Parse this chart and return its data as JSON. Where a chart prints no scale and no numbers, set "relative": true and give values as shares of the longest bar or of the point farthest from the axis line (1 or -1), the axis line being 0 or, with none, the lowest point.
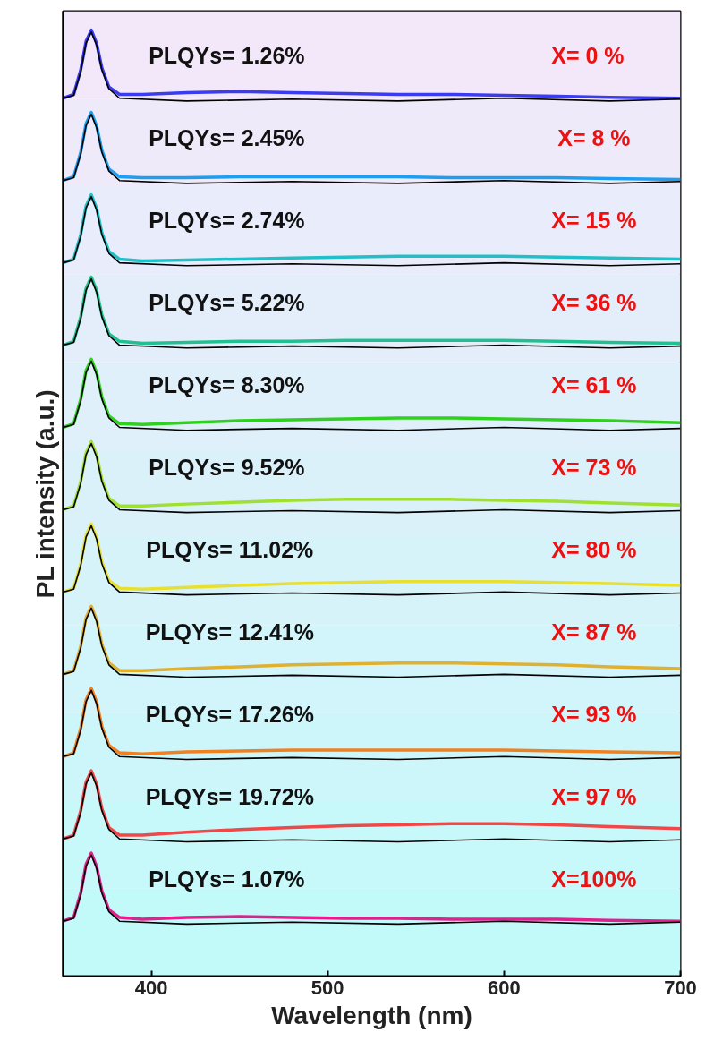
{
  "chart_data": {
    "type": "line",
    "relative": true,
    "xlabel": "Wavelength (nm)",
    "ylabel": "PL intensity (a.u.)",
    "x": [
      350,
      356,
      360,
      363,
      366,
      369,
      372,
      376,
      382,
      395,
      420,
      450,
      480,
      510,
      540,
      570,
      600,
      630,
      660,
      700
    ],
    "xlim": [
      350,
      700
    ],
    "xticks": [
      400,
      500,
      600,
      700
    ],
    "grid": false,
    "line_style": "solid",
    "marker": "none",
    "series": [
      {
        "color": "#3b3bf0",
        "values": [
          0.928,
          0.932,
          0.958,
          0.988,
          1.0,
          0.986,
          0.96,
          0.94,
          0.932,
          0.932,
          0.934,
          0.935,
          0.934,
          0.933,
          0.932,
          0.932,
          0.931,
          0.93,
          0.929,
          0.928
        ]
      },
      {
        "color": "#000000",
        "x": [
          350,
          356,
          360,
          363,
          366,
          369,
          372,
          376,
          382,
          420,
          480,
          540,
          600,
          660,
          700
        ],
        "values": [
          0.928,
          0.931,
          0.956,
          0.986,
          0.998,
          0.984,
          0.958,
          0.938,
          0.928,
          0.925,
          0.927,
          0.925,
          0.928,
          0.925,
          0.927
        ]
      },
      {
        "color": "#1e9ef0",
        "values": [
          0.841,
          0.845,
          0.871,
          0.901,
          0.913,
          0.899,
          0.873,
          0.853,
          0.845,
          0.844,
          0.844,
          0.845,
          0.845,
          0.845,
          0.845,
          0.844,
          0.844,
          0.844,
          0.843,
          0.842
        ]
      },
      {
        "color": "#000000",
        "x": [
          350,
          356,
          360,
          363,
          366,
          369,
          372,
          376,
          382,
          420,
          480,
          540,
          600,
          660,
          700
        ],
        "values": [
          0.841,
          0.844,
          0.869,
          0.899,
          0.911,
          0.897,
          0.871,
          0.851,
          0.841,
          0.838,
          0.84,
          0.838,
          0.841,
          0.838,
          0.84
        ]
      },
      {
        "color": "#20c0c8",
        "values": [
          0.754,
          0.758,
          0.784,
          0.814,
          0.826,
          0.812,
          0.786,
          0.766,
          0.758,
          0.756,
          0.757,
          0.758,
          0.759,
          0.76,
          0.761,
          0.761,
          0.761,
          0.76,
          0.759,
          0.758
        ]
      },
      {
        "color": "#000000",
        "x": [
          350,
          356,
          360,
          363,
          366,
          369,
          372,
          376,
          382,
          420,
          480,
          540,
          600,
          660,
          700
        ],
        "values": [
          0.754,
          0.757,
          0.782,
          0.812,
          0.824,
          0.81,
          0.784,
          0.764,
          0.754,
          0.751,
          0.753,
          0.751,
          0.754,
          0.751,
          0.753
        ]
      },
      {
        "color": "#20c090",
        "values": [
          0.667,
          0.671,
          0.697,
          0.727,
          0.739,
          0.725,
          0.699,
          0.679,
          0.671,
          0.669,
          0.67,
          0.671,
          0.671,
          0.672,
          0.672,
          0.672,
          0.672,
          0.671,
          0.67,
          0.669
        ]
      },
      {
        "color": "#000000",
        "x": [
          350,
          356,
          360,
          363,
          366,
          369,
          372,
          376,
          382,
          420,
          480,
          540,
          600,
          660,
          700
        ],
        "values": [
          0.667,
          0.67,
          0.695,
          0.725,
          0.737,
          0.723,
          0.697,
          0.677,
          0.667,
          0.664,
          0.666,
          0.664,
          0.667,
          0.664,
          0.666
        ]
      },
      {
        "color": "#30d020",
        "values": [
          0.58,
          0.584,
          0.61,
          0.64,
          0.652,
          0.638,
          0.612,
          0.592,
          0.584,
          0.583,
          0.585,
          0.587,
          0.588,
          0.589,
          0.59,
          0.59,
          0.589,
          0.588,
          0.587,
          0.585
        ]
      },
      {
        "color": "#000000",
        "x": [
          350,
          356,
          360,
          363,
          366,
          369,
          372,
          376,
          382,
          420,
          480,
          540,
          600,
          660,
          700
        ],
        "values": [
          0.58,
          0.583,
          0.608,
          0.638,
          0.65,
          0.636,
          0.61,
          0.59,
          0.58,
          0.577,
          0.579,
          0.577,
          0.58,
          0.577,
          0.579
        ]
      },
      {
        "color": "#a0e030",
        "values": [
          0.493,
          0.497,
          0.523,
          0.553,
          0.565,
          0.551,
          0.525,
          0.505,
          0.497,
          0.497,
          0.499,
          0.501,
          0.503,
          0.504,
          0.504,
          0.504,
          0.503,
          0.502,
          0.5,
          0.498
        ]
      },
      {
        "color": "#000000",
        "x": [
          350,
          356,
          360,
          363,
          366,
          369,
          372,
          376,
          382,
          420,
          480,
          540,
          600,
          660,
          700
        ],
        "values": [
          0.493,
          0.496,
          0.521,
          0.551,
          0.563,
          0.549,
          0.523,
          0.503,
          0.493,
          0.49,
          0.492,
          0.49,
          0.493,
          0.49,
          0.492
        ]
      },
      {
        "color": "#e8e030",
        "values": [
          0.406,
          0.41,
          0.436,
          0.466,
          0.478,
          0.464,
          0.438,
          0.418,
          0.41,
          0.409,
          0.411,
          0.413,
          0.415,
          0.416,
          0.417,
          0.417,
          0.417,
          0.416,
          0.415,
          0.413
        ]
      },
      {
        "color": "#000000",
        "x": [
          350,
          356,
          360,
          363,
          366,
          369,
          372,
          376,
          382,
          420,
          480,
          540,
          600,
          660,
          700
        ],
        "values": [
          0.406,
          0.409,
          0.434,
          0.464,
          0.476,
          0.462,
          0.436,
          0.416,
          0.406,
          0.403,
          0.405,
          0.403,
          0.406,
          0.403,
          0.405
        ]
      },
      {
        "color": "#e0b030",
        "values": [
          0.319,
          0.323,
          0.349,
          0.379,
          0.391,
          0.377,
          0.351,
          0.331,
          0.323,
          0.323,
          0.325,
          0.327,
          0.329,
          0.33,
          0.331,
          0.331,
          0.33,
          0.329,
          0.327,
          0.325
        ]
      },
      {
        "color": "#000000",
        "x": [
          350,
          356,
          360,
          363,
          366,
          369,
          372,
          376,
          382,
          420,
          480,
          540,
          600,
          660,
          700
        ],
        "values": [
          0.319,
          0.322,
          0.347,
          0.377,
          0.389,
          0.375,
          0.349,
          0.329,
          0.319,
          0.316,
          0.318,
          0.316,
          0.319,
          0.316,
          0.318
        ]
      },
      {
        "color": "#f08020",
        "values": [
          0.232,
          0.236,
          0.262,
          0.292,
          0.304,
          0.29,
          0.264,
          0.244,
          0.236,
          0.235,
          0.237,
          0.238,
          0.239,
          0.239,
          0.239,
          0.239,
          0.239,
          0.238,
          0.237,
          0.236
        ]
      },
      {
        "color": "#000000",
        "x": [
          350,
          356,
          360,
          363,
          366,
          369,
          372,
          376,
          382,
          420,
          480,
          540,
          600,
          660,
          700
        ],
        "values": [
          0.232,
          0.235,
          0.26,
          0.29,
          0.302,
          0.288,
          0.262,
          0.242,
          0.232,
          0.229,
          0.231,
          0.229,
          0.232,
          0.229,
          0.231
        ]
      },
      {
        "color": "#f04848",
        "values": [
          0.145,
          0.149,
          0.175,
          0.205,
          0.217,
          0.203,
          0.177,
          0.157,
          0.149,
          0.149,
          0.152,
          0.155,
          0.157,
          0.159,
          0.16,
          0.161,
          0.161,
          0.16,
          0.158,
          0.156
        ]
      },
      {
        "color": "#000000",
        "x": [
          350,
          356,
          360,
          363,
          366,
          369,
          372,
          376,
          382,
          420,
          480,
          540,
          600,
          660,
          700
        ],
        "values": [
          0.145,
          0.148,
          0.173,
          0.203,
          0.215,
          0.201,
          0.175,
          0.155,
          0.145,
          0.142,
          0.144,
          0.142,
          0.145,
          0.142,
          0.144
        ]
      },
      {
        "color": "#e0208c",
        "values": [
          0.058,
          0.062,
          0.088,
          0.118,
          0.13,
          0.116,
          0.09,
          0.07,
          0.062,
          0.06,
          0.062,
          0.063,
          0.062,
          0.061,
          0.061,
          0.06,
          0.06,
          0.06,
          0.059,
          0.058
        ]
      },
      {
        "color": "#000000",
        "x": [
          350,
          356,
          360,
          363,
          366,
          369,
          372,
          376,
          382,
          420,
          480,
          540,
          600,
          660,
          700
        ],
        "values": [
          0.058,
          0.061,
          0.086,
          0.116,
          0.128,
          0.114,
          0.088,
          0.068,
          0.058,
          0.055,
          0.057,
          0.055,
          0.058,
          0.055,
          0.057
        ]
      }
    ],
    "bands": [
      {
        "axis": "y",
        "from": 0,
        "to": 0.093,
        "color": "#c2fafa"
      },
      {
        "axis": "y",
        "from": 0.093,
        "to": 0.185,
        "color": "#c7f8fa"
      },
      {
        "axis": "y",
        "from": 0.185,
        "to": 0.278,
        "color": "#ccf6fa"
      },
      {
        "axis": "y",
        "from": 0.278,
        "to": 0.371,
        "color": "#d1f5fa"
      },
      {
        "axis": "y",
        "from": 0.371,
        "to": 0.464,
        "color": "#d6f3fa"
      },
      {
        "axis": "y",
        "from": 0.464,
        "to": 0.556,
        "color": "#dbf1fa"
      },
      {
        "axis": "y",
        "from": 0.556,
        "to": 0.649,
        "color": "#dff0fa"
      },
      {
        "axis": "y",
        "from": 0.649,
        "to": 0.742,
        "color": "#e4eefa"
      },
      {
        "axis": "y",
        "from": 0.742,
        "to": 0.835,
        "color": "#e9ecfa"
      },
      {
        "axis": "y",
        "from": 0.835,
        "to": 0.927,
        "color": "#eeeafa"
      },
      {
        "axis": "y",
        "from": 0.927,
        "to": 1.02,
        "color": "#f3e8fa"
      }
    ],
    "annotations": [
      "PLQYs=  1.26%",
      "X=  0  %",
      "PLQYs=  2.45%",
      "X= 8 %",
      "PLQYs=  2.74%",
      "X= 15 %",
      "PLQYs=  5.22%",
      "X= 36 %",
      "PLQYs=  8.30%",
      "X= 61 %",
      "PLQYs=  9.52%",
      "X= 73 %",
      "PLQYs= 11.02%",
      "X= 80 %",
      "PLQYs= 12.41%",
      "X= 87 %",
      "PLQYs= 17.26%",
      "X= 93 %",
      "PLQYs= 19.72%",
      "X= 97 %",
      "PLQYs=  1.07%",
      "X=100%"
    ]
  }
}
